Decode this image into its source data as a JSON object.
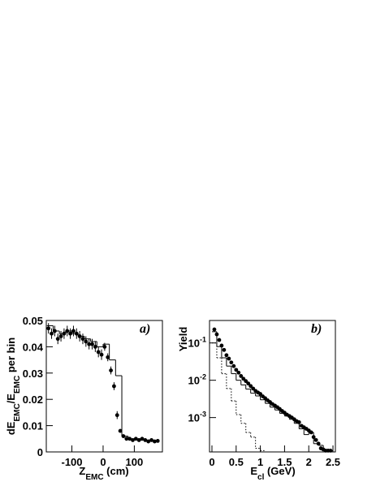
{
  "chart_data": [
    {
      "type": "histogram",
      "annotation": "a)",
      "xlabel_parts": [
        {
          "text": "Z"
        },
        {
          "text": "EMC",
          "sub": true
        },
        {
          "text": " (cm)"
        }
      ],
      "ylabel_parts": [
        {
          "text": "dE"
        },
        {
          "text": "EMC",
          "sub": true
        },
        {
          "text": "/E"
        },
        {
          "text": "EMC",
          "sub": true
        },
        {
          "text": " per bin"
        }
      ],
      "xlim": [
        -182,
        190
      ],
      "xticks": [
        -100,
        0,
        100
      ],
      "ylim": [
        0,
        0.05
      ],
      "yticks": [
        0,
        0.01,
        0.02,
        0.03,
        0.04,
        0.05
      ],
      "series": [
        {
          "kind": "points",
          "color": "#000000",
          "x": [
            -175,
            -165,
            -155,
            -145,
            -135,
            -125,
            -115,
            -105,
            -95,
            -85,
            -75,
            -65,
            -55,
            -45,
            -35,
            -25,
            -15,
            -5,
            5,
            15,
            25,
            35,
            45,
            55,
            65,
            75,
            85,
            95,
            105,
            115,
            125,
            135,
            145,
            155,
            165,
            175
          ],
          "values": [
            0.047,
            0.045,
            0.046,
            0.043,
            0.044,
            0.045,
            0.046,
            0.045,
            0.046,
            0.045,
            0.044,
            0.043,
            0.042,
            0.041,
            0.041,
            0.04,
            0.038,
            0.037,
            0.04,
            0.036,
            0.031,
            0.025,
            0.014,
            0.008,
            0.006,
            0.005,
            0.005,
            0.0045,
            0.005,
            0.0045,
            0.005,
            0.0045,
            0.004,
            0.0045,
            0.004,
            0.0042
          ],
          "errors": [
            0.002,
            0.002,
            0.002,
            0.002,
            0.002,
            0.002,
            0.002,
            0.002,
            0.002,
            0.002,
            0.002,
            0.002,
            0.002,
            0.002,
            0.002,
            0.002,
            0.002,
            0.002,
            0.0015,
            0.0015,
            0.0015,
            0.0015,
            0.0015,
            0.0006,
            0.0006,
            0.0006,
            0.0006,
            0.0006,
            0.0006,
            0.0006,
            0.0006,
            0.0006,
            0.0006,
            0.0006,
            0.0006,
            0.0006
          ]
        },
        {
          "kind": "step",
          "style": "solid",
          "color": "#000000",
          "bins": [
            -180,
            -160,
            -140,
            -120,
            -100,
            -80,
            -60,
            -40,
            -20,
            0,
            20,
            40,
            60,
            80,
            100,
            120,
            140,
            160,
            180
          ],
          "values": [
            0.048,
            0.046,
            0.045,
            0.046,
            0.045,
            0.044,
            0.043,
            0.042,
            0.04,
            0.041,
            0.035,
            0.029,
            0.006,
            0.005,
            0.005,
            0.0045,
            0.0045,
            0.004
          ]
        }
      ]
    },
    {
      "type": "histogram",
      "annotation": "b)",
      "xlabel_parts": [
        {
          "text": "E"
        },
        {
          "text": "cl",
          "sub": true
        },
        {
          "text": " (GeV)"
        }
      ],
      "ylabel_parts": [
        {
          "text": "Yield"
        }
      ],
      "xlim": [
        -0.05,
        2.55
      ],
      "xticks": [
        0,
        0.5,
        1,
        1.5,
        2,
        2.5
      ],
      "ylog": true,
      "ylim": [
        0.00012,
        0.4
      ],
      "yticks": [
        {
          "value": 0.001,
          "label": "10",
          "sup": "-3"
        },
        {
          "value": 0.01,
          "label": "10",
          "sup": "-2"
        },
        {
          "value": 0.1,
          "label": "10",
          "sup": "-1"
        }
      ],
      "series": [
        {
          "kind": "points",
          "color": "#000000",
          "x": [
            0.05,
            0.1,
            0.15,
            0.2,
            0.25,
            0.3,
            0.35,
            0.4,
            0.45,
            0.5,
            0.55,
            0.6,
            0.65,
            0.7,
            0.75,
            0.8,
            0.85,
            0.9,
            0.95,
            1,
            1.05,
            1.1,
            1.15,
            1.2,
            1.25,
            1.3,
            1.35,
            1.4,
            1.45,
            1.5,
            1.55,
            1.6,
            1.65,
            1.7,
            1.75,
            1.8,
            1.85,
            1.9,
            1.95,
            2,
            2.05,
            2.1,
            2.15,
            2.2,
            2.25,
            2.3,
            2.35,
            2.4,
            2.45
          ],
          "values": [
            0.23,
            0.17,
            0.12,
            0.085,
            0.065,
            0.047,
            0.038,
            0.03,
            0.024,
            0.019,
            0.016,
            0.013,
            0.011,
            0.0095,
            0.0082,
            0.007,
            0.006,
            0.0052,
            0.0047,
            0.0043,
            0.0037,
            0.0033,
            0.0029,
            0.0026,
            0.0023,
            0.0021,
            0.0019,
            0.0017,
            0.0015,
            0.00135,
            0.0012,
            0.0011,
            0.001,
            0.0009,
            0.0008,
            0.00075,
            0.0006,
            0.00055,
            0.0005,
            0.00045,
            0.0004,
            0.0003,
            0.00025,
            0.0002,
            0.00015,
            0.00014,
            0.00013,
            0.00013,
            0.00013
          ]
        },
        {
          "kind": "step",
          "style": "solid",
          "color": "#000000",
          "bins": [
            0,
            0.1,
            0.2,
            0.3,
            0.4,
            0.5,
            0.6,
            0.7,
            0.8,
            0.9,
            1,
            1.1,
            1.2,
            1.3,
            1.4,
            1.5,
            1.6,
            1.7,
            1.8,
            1.9,
            2,
            2.1,
            2.2,
            2.3,
            2.4,
            2.5
          ],
          "values": [
            0.2,
            0.08,
            0.04,
            0.024,
            0.015,
            0.01,
            0.0075,
            0.0058,
            0.0045,
            0.0038,
            0.003,
            0.0024,
            0.0019,
            0.0016,
            0.0013,
            0.0011,
            0.0009,
            0.0007,
            0.0005,
            0.00035,
            0.0004,
            0.0002,
            0.00018,
            0.00013,
            0.00013
          ]
        },
        {
          "kind": "step",
          "style": "dotted",
          "color": "#000000",
          "bins": [
            0,
            0.1,
            0.2,
            0.3,
            0.4,
            0.5,
            0.6,
            0.7,
            0.8,
            0.9,
            1,
            1.1
          ],
          "values": [
            0.1,
            0.04,
            0.015,
            0.006,
            0.0028,
            0.0012,
            0.0007,
            0.0004,
            0.0003,
            0.00015,
            0.00013
          ]
        }
      ]
    }
  ]
}
